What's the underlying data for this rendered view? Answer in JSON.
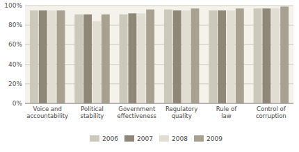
{
  "chart_data": {
    "type": "bar",
    "categories": [
      "Voice and\naccountability",
      "Political\nstability",
      "Government\neffectiveness",
      "Regulatory\nquality",
      "Rule of\nlaw",
      "Control of\ncorruption"
    ],
    "series": [
      {
        "name": "2006",
        "color": "#ccc8ba",
        "values": [
          95,
          91,
          91,
          96,
          95,
          97
        ]
      },
      {
        "name": "2007",
        "color": "#8f8878",
        "values": [
          95,
          91,
          92,
          95,
          95,
          97
        ]
      },
      {
        "name": "2008",
        "color": "#e2ddd2",
        "values": [
          95,
          84,
          92,
          95,
          95,
          97
        ]
      },
      {
        "name": "2009",
        "color": "#a8a090",
        "values": [
          95,
          91,
          96,
          97,
          97,
          99
        ]
      }
    ],
    "ylim": [
      0,
      100
    ],
    "yticks": [
      {
        "value": 0,
        "label": "0%"
      },
      {
        "value": 20,
        "label": "20%"
      },
      {
        "value": 40,
        "label": "40%"
      },
      {
        "value": 60,
        "label": "60%"
      },
      {
        "value": 80,
        "label": "80%"
      },
      {
        "value": 100,
        "label": "100%"
      }
    ],
    "grid": true,
    "legend": "bottom"
  }
}
